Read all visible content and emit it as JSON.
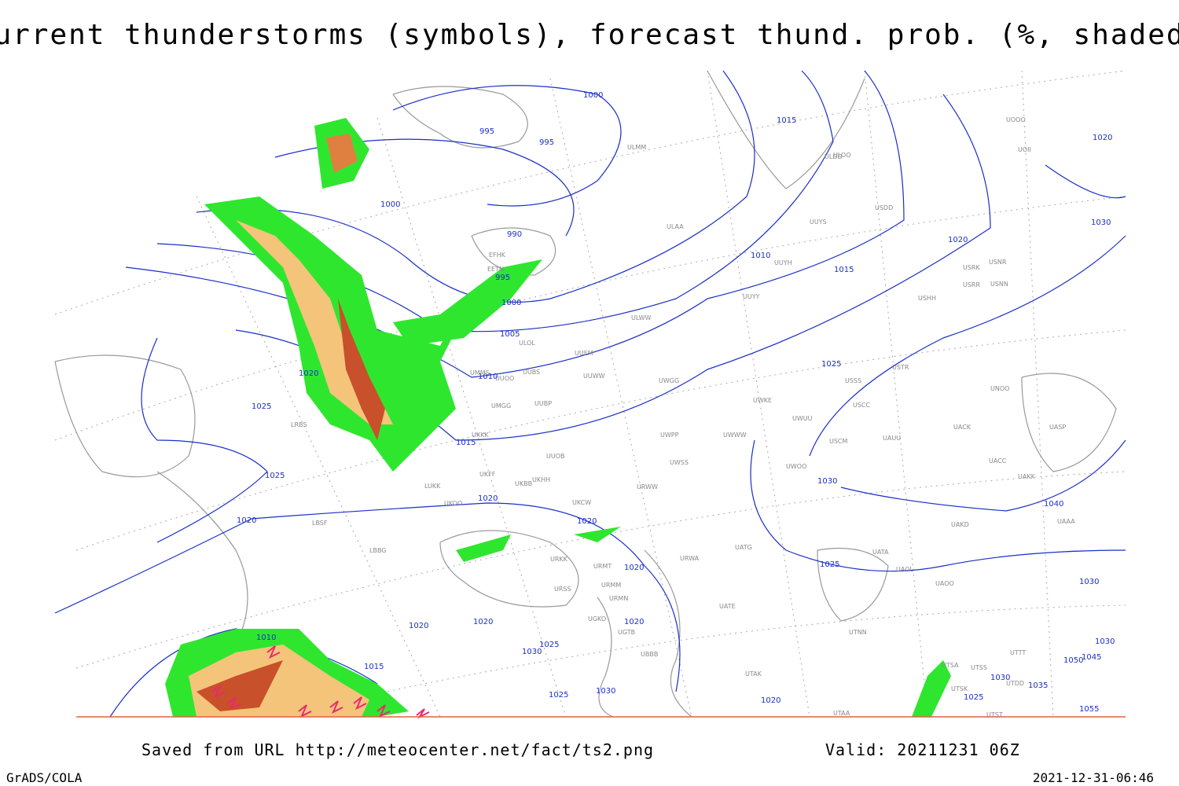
{
  "header": {
    "title": "Current thunderstorms (symbols), forecast thund. prob. (%, shaded)"
  },
  "footer": {
    "source": "Saved from URL http://meteocenter.net/fact/ts2.png",
    "valid": "Valid: 20211231 06Z",
    "software": "GrADS/COLA",
    "timestamp": "2021-12-31-06:46"
  },
  "isobar_labels": [
    "1000",
    "995",
    "995",
    "1000",
    "990",
    "995",
    "1000",
    "1005",
    "1010",
    "1010",
    "1015",
    "1015",
    "1020",
    "1020",
    "1030",
    "1025",
    "1030",
    "1040",
    "1025",
    "1020",
    "1025",
    "1020",
    "1015",
    "1020",
    "1020",
    "1020",
    "1025",
    "1020",
    "1020",
    "1020",
    "1010",
    "1015",
    "1030",
    "1025",
    "1030",
    "1025",
    "1020",
    "1030",
    "1025",
    "1035",
    "1030",
    "1045",
    "1050",
    "1055",
    "1030"
  ],
  "stations": [
    "ULMM",
    "ULOO",
    "UUYS",
    "ULAA",
    "EFHK",
    "EETN",
    "UUYH",
    "UUYY",
    "ULWW",
    "UUEM",
    "ULOL",
    "UUWW",
    "UUBS",
    "UMMS",
    "UMGG",
    "UUBP",
    "UKKK",
    "UUOO",
    "UUOB",
    "UKHH",
    "UKBB",
    "UKOO",
    "LUKK",
    "UKCW",
    "LRBS",
    "LBSF",
    "LBBG",
    "UKFF",
    "URKK",
    "URMT",
    "URMM",
    "URMN",
    "URSS",
    "UGKO",
    "UGTB",
    "UBBB",
    "URWW",
    "URWA",
    "UATG",
    "UATE",
    "UTAK",
    "UTAA",
    "UTNN",
    "UATA",
    "UAOL",
    "UAOO",
    "UWWW",
    "UWGG",
    "UWPP",
    "UWSS",
    "UWKE",
    "UWOO",
    "UWUU",
    "USCM",
    "UAUU",
    "USSS",
    "USTR",
    "USCC",
    "UACC",
    "UACK",
    "UNOO",
    "UASP",
    "UAKK",
    "UAKD",
    "UAAA",
    "USNN",
    "USRR",
    "USRK",
    "USHH",
    "USDD",
    "ULDD",
    "UOOO",
    "UOII",
    "USNR",
    "UTSA",
    "UTSS",
    "UTSK",
    "UTST",
    "UTDD",
    "UTTT"
  ]
}
